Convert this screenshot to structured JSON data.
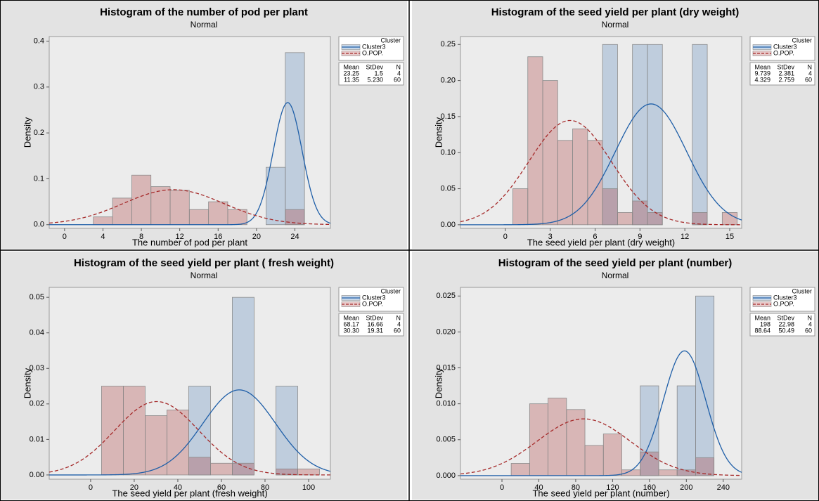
{
  "chart_data": [
    {
      "type": "histogram",
      "title": "Histogram of the number of pod per plant",
      "subtitle": "Normal",
      "xlabel": "The number of pod per plant",
      "ylabel": "Density",
      "xlim": [
        -1.6,
        27.7
      ],
      "xticks": [
        0,
        4,
        8,
        12,
        16,
        20,
        24
      ],
      "ylim": [
        -0.008,
        0.41
      ],
      "yticks": [
        {
          "value": 0,
          "label": "0.0"
        },
        {
          "value": 0.1,
          "label": "0.1"
        },
        {
          "value": 0.2,
          "label": "0.2"
        },
        {
          "value": 0.3,
          "label": "0.3"
        },
        {
          "value": 0.4,
          "label": "0.4"
        }
      ],
      "bins": [
        3,
        5,
        7,
        9,
        11,
        13,
        15,
        17,
        19,
        21,
        23,
        25
      ],
      "legend_title": "Cluster",
      "stats_headers": [
        "Mean",
        "StDev",
        "N"
      ],
      "series": [
        {
          "name": "Cluster3",
          "color": "#1f5fa8",
          "linestyle": "solid",
          "values": [
            0,
            0,
            0,
            0,
            0,
            0,
            0,
            0,
            0,
            0.125,
            0.375
          ],
          "stats": {
            "mean": 23.25,
            "stdev": 1.5,
            "n": 4
          }
        },
        {
          "name": "O.POP.",
          "color": "#a52a2a",
          "linestyle": "dashed",
          "values": [
            0.017,
            0.058,
            0.108,
            0.083,
            0.075,
            0.033,
            0.05,
            0.033,
            0,
            0,
            0.033
          ],
          "stats": {
            "mean": 11.35,
            "stdev": {
              "value": 5.23,
              "label": "5.230"
            },
            "n": 60
          }
        }
      ]
    },
    {
      "type": "histogram",
      "title": "Histogram of the seed yield per plant (dry weight)",
      "subtitle": "Normal",
      "xlabel": "The seed yield per plant (dry weight)",
      "ylabel": "Density",
      "xlim": [
        -3,
        15.8
      ],
      "xticks": [
        0,
        3,
        6,
        9,
        12,
        15
      ],
      "ylim": [
        -0.005,
        0.261
      ],
      "yticks": [
        {
          "value": 0,
          "label": "0.00"
        },
        {
          "value": 0.05,
          "label": "0.05"
        },
        {
          "value": 0.1,
          "label": "0.10"
        },
        {
          "value": 0.15,
          "label": "0.15"
        },
        {
          "value": 0.2,
          "label": "0.20"
        },
        {
          "value": 0.25,
          "label": "0.25"
        }
      ],
      "bins": [
        0.5,
        1.5,
        2.5,
        3.5,
        4.5,
        5.5,
        6.5,
        7.5,
        8.5,
        9.5,
        10.5,
        11.5,
        12.5,
        13.5,
        14.5,
        15.5
      ],
      "legend_title": "Cluster",
      "stats_headers": [
        "Mean",
        "StDev",
        "N"
      ],
      "series": [
        {
          "name": "Cluster3",
          "color": "#1f5fa8",
          "linestyle": "solid",
          "values": [
            0,
            0,
            0,
            0,
            0,
            0,
            0.25,
            0,
            0.25,
            0.25,
            0,
            0,
            0.25,
            0,
            0
          ],
          "stats": {
            "mean": 9.739,
            "stdev": 2.381,
            "n": 4
          }
        },
        {
          "name": "O.POP.",
          "color": "#a52a2a",
          "linestyle": "dashed",
          "values": [
            0.05,
            0.233,
            0.2,
            0.117,
            0.133,
            0.117,
            0.05,
            0.017,
            0.033,
            0.017,
            0,
            0,
            0.017,
            0,
            0.017
          ],
          "stats": {
            "mean": 4.329,
            "stdev": 2.759,
            "n": 60
          }
        }
      ]
    },
    {
      "type": "histogram",
      "title": "Histogram of the seed yield per plant ( fresh weight)",
      "subtitle": "Normal",
      "xlabel": "The seed yield per plant (fresh weight)",
      "ylabel": "Density",
      "xlim": [
        -19,
        110
      ],
      "xticks": [
        0,
        20,
        40,
        60,
        80,
        100
      ],
      "ylim": [
        -0.0012,
        0.0528
      ],
      "yticks": [
        {
          "value": 0,
          "label": "0.00"
        },
        {
          "value": 0.01,
          "label": "0.01"
        },
        {
          "value": 0.02,
          "label": "0.02"
        },
        {
          "value": 0.03,
          "label": "0.03"
        },
        {
          "value": 0.04,
          "label": "0.04"
        },
        {
          "value": 0.05,
          "label": "0.05"
        }
      ],
      "bins": [
        5,
        15,
        25,
        35,
        45,
        55,
        65,
        75,
        85,
        95,
        105
      ],
      "legend_title": "Cluster",
      "stats_headers": [
        "Mean",
        "StDev",
        "N"
      ],
      "series": [
        {
          "name": "Cluster3",
          "color": "#1f5fa8",
          "linestyle": "solid",
          "values": [
            0,
            0,
            0,
            0,
            0.025,
            0,
            0.05,
            0,
            0.025,
            0
          ],
          "stats": {
            "mean": 68.17,
            "stdev": 16.66,
            "n": 4
          }
        },
        {
          "name": "O.POP.",
          "color": "#a52a2a",
          "linestyle": "dashed",
          "values": [
            0.025,
            0.025,
            0.0167,
            0.0183,
            0.005,
            0.0033,
            0.0033,
            0,
            0.0017,
            0.0017
          ],
          "stats": {
            "mean": {
              "value": 30.3,
              "label": "30.30"
            },
            "stdev": 19.31,
            "n": 60
          }
        }
      ]
    },
    {
      "type": "histogram",
      "title": "Histogram of the seed yield per plant (number)",
      "subtitle": "Normal",
      "xlabel": "The seed yield per plant (number)",
      "ylabel": "Density",
      "xlim": [
        -45,
        260
      ],
      "xticks": [
        0,
        40,
        80,
        120,
        160,
        200,
        240
      ],
      "ylim": [
        -0.0005,
        0.0262
      ],
      "yticks": [
        {
          "value": 0,
          "label": "0.000"
        },
        {
          "value": 0.005,
          "label": "0.005"
        },
        {
          "value": 0.01,
          "label": "0.010"
        },
        {
          "value": 0.015,
          "label": "0.015"
        },
        {
          "value": 0.02,
          "label": "0.020"
        },
        {
          "value": 0.025,
          "label": "0.025"
        }
      ],
      "bins": [
        10,
        30,
        50,
        70,
        90,
        110,
        130,
        150,
        170,
        190,
        210,
        230
      ],
      "legend_title": "Cluster",
      "stats_headers": [
        "Mean",
        "StDev",
        "N"
      ],
      "series": [
        {
          "name": "Cluster3",
          "color": "#1f5fa8",
          "linestyle": "solid",
          "values": [
            0,
            0,
            0,
            0,
            0,
            0,
            0,
            0.0125,
            0,
            0.0125,
            0.025
          ],
          "stats": {
            "mean": 198,
            "stdev": 22.98,
            "n": 4
          }
        },
        {
          "name": "O.POP.",
          "color": "#a52a2a",
          "linestyle": "dashed",
          "values": [
            0.0017,
            0.01,
            0.0108,
            0.0092,
            0.0042,
            0.0058,
            0.0008,
            0.0033,
            0.0008,
            0.0008,
            0.0025
          ],
          "stats": {
            "mean": 88.64,
            "stdev": 50.49,
            "n": 60
          }
        }
      ]
    }
  ]
}
